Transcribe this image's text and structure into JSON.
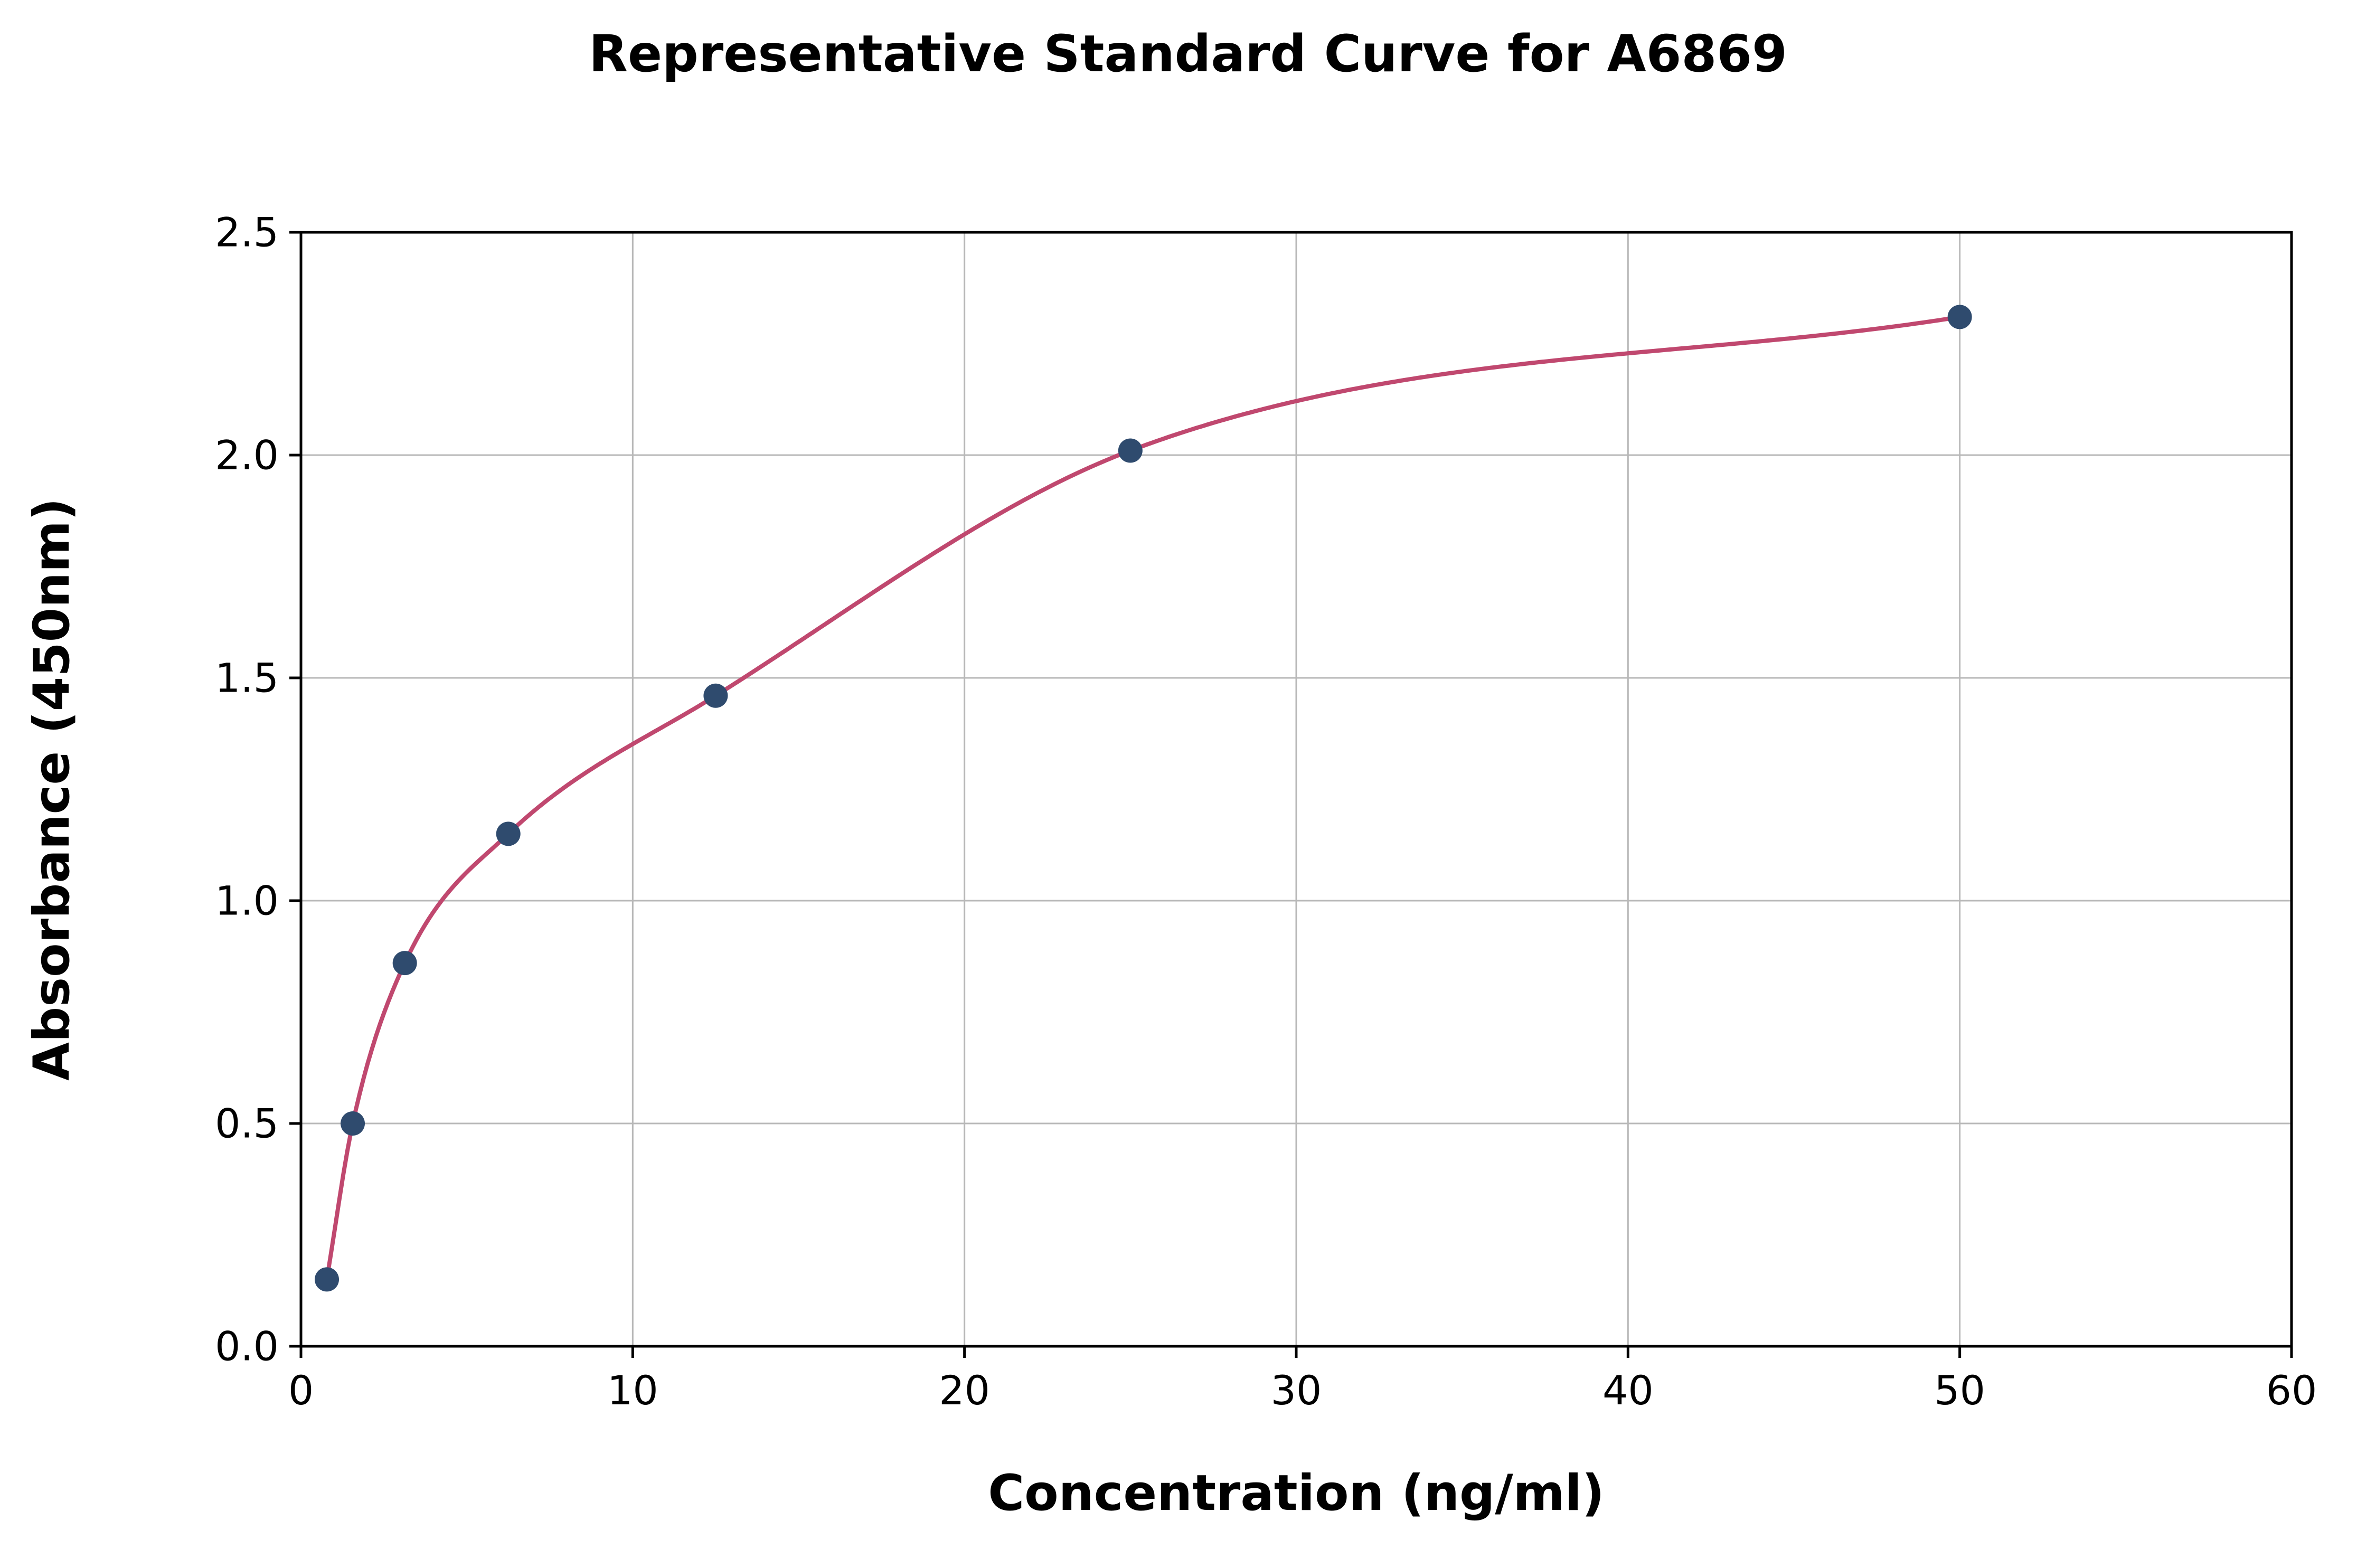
{
  "chart_data": {
    "type": "scatter",
    "title": "Representative Standard Curve for A6869",
    "xlabel": "Concentration (ng/ml)",
    "ylabel": "Absorbance (450nm)",
    "x": [
      0.78,
      1.56,
      3.13,
      6.25,
      12.5,
      25,
      50
    ],
    "y": [
      0.15,
      0.5,
      0.86,
      1.15,
      1.46,
      2.01,
      2.31
    ],
    "fit_curve": "monotone-through-points",
    "xlim": [
      0,
      60
    ],
    "ylim": [
      0,
      2.5
    ],
    "xticks": [
      0,
      10,
      20,
      30,
      40,
      50,
      60
    ],
    "yticks": [
      0,
      0.5,
      1.0,
      1.5,
      2.0,
      2.5
    ],
    "xtick_labels": [
      "0",
      "10",
      "20",
      "30",
      "40",
      "50",
      "60"
    ],
    "ytick_labels": [
      "0.0",
      "0.5",
      "1.0",
      "1.5",
      "2.0",
      "2.5"
    ],
    "grid": true,
    "legend_position": "none",
    "colors": {
      "point": "#2f4b6e",
      "curve": "#c0486f",
      "grid": "#b8b8b8",
      "frame": "#000000",
      "background": "#ffffff",
      "text": "#000000"
    }
  }
}
